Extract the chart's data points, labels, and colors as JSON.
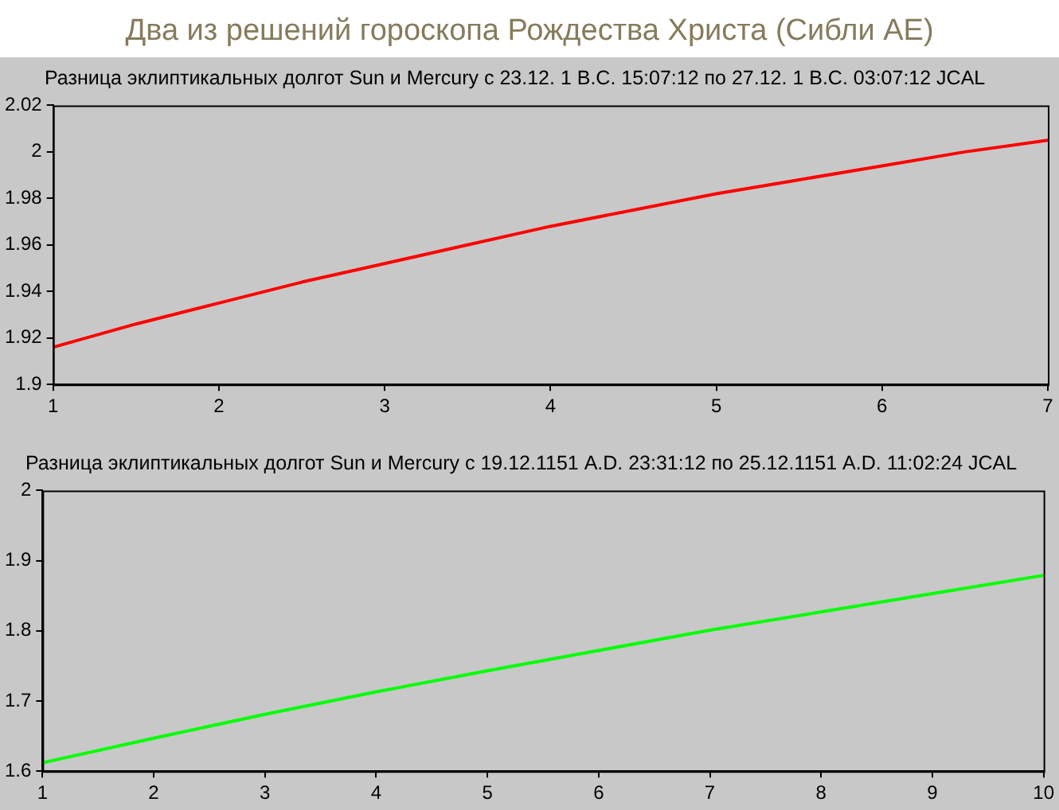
{
  "chart_data": [
    {
      "type": "line",
      "title": "Два из решений гороскопа Рождества Христа (Сибли AE)",
      "subtitle": "Разница эклиптикальных долгот Sun и Mercury с 23.12.   1 B.C. 15:07:12 по 27.12.   1 B.C. 03:07:12 JCAL",
      "x": [
        1,
        1.5,
        2,
        2.5,
        3,
        3.5,
        4,
        4.5,
        5,
        5.5,
        6,
        6.5,
        7
      ],
      "series": [
        {
          "color": "#ff0000",
          "values": [
            1.916,
            1.926,
            1.935,
            1.944,
            1.952,
            1.96,
            1.968,
            1.975,
            1.982,
            1.988,
            1.994,
            2.0,
            2.005
          ]
        }
      ],
      "xlim": [
        1,
        7
      ],
      "xticks": [
        1,
        2,
        3,
        4,
        5,
        6,
        7
      ],
      "ylim": [
        1.9,
        2.02
      ],
      "yticks": [
        1.9,
        1.92,
        1.94,
        1.96,
        1.98,
        2,
        2.02
      ],
      "marker": "none",
      "line_style": "solid"
    },
    {
      "type": "line",
      "title": "Разница эклиптикальных долгот Sun и Mercury с 19.12.1151 A.D. 23:31:12 по 25.12.1151 A.D. 11:02:24 JCAL",
      "x": [
        1,
        2,
        3,
        4,
        5,
        6,
        7,
        8,
        9,
        10
      ],
      "series": [
        {
          "color": "#00ff00",
          "values": [
            1.612,
            1.647,
            1.681,
            1.713,
            1.743,
            1.772,
            1.801,
            1.827,
            1.853,
            1.879
          ]
        }
      ],
      "xlim": [
        1,
        10
      ],
      "xticks": [
        1,
        2,
        3,
        4,
        5,
        6,
        7,
        8,
        9,
        10
      ],
      "ylim": [
        1.6,
        2
      ],
      "yticks": [
        1.6,
        1.7,
        1.8,
        1.9,
        2
      ],
      "marker": "none",
      "line_style": "solid"
    }
  ]
}
